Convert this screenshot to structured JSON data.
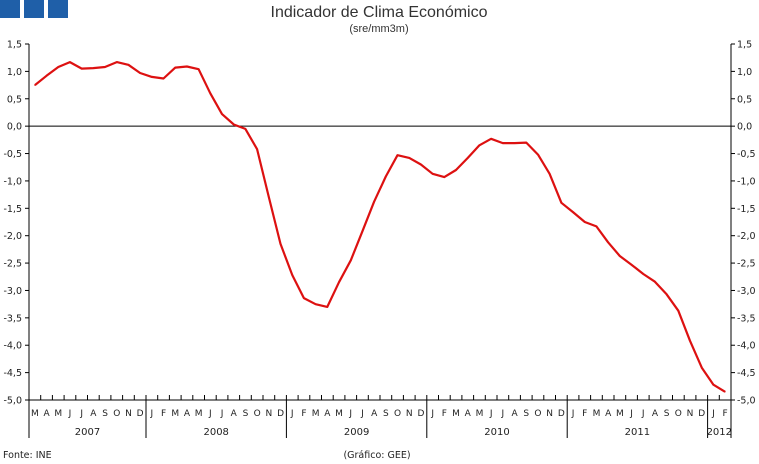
{
  "brand": {
    "square_color": "#1f5fa8",
    "square_count": 3
  },
  "footer": {
    "source": "Fonte: INE",
    "credit": "(Gráfico: GEE)"
  },
  "chart_data": {
    "type": "line",
    "title": "Indicador de Clima Económico",
    "subtitle": "(sre/mm3m)",
    "xlabel": "",
    "ylabel": "",
    "ylim": [
      -5.0,
      1.5
    ],
    "yticks": [
      1.5,
      1.0,
      0.5,
      0.0,
      -0.5,
      -1.0,
      -1.5,
      -2.0,
      -2.5,
      -3.0,
      -3.5,
      -4.0,
      -4.5,
      -5.0
    ],
    "ytick_labels": [
      "1,5",
      "1,0",
      "0,5",
      "0,0",
      "-0,5",
      "-1,0",
      "-1,5",
      "-2,0",
      "-2,5",
      "-3,0",
      "-3,5",
      "-4,0",
      "-4,5",
      "-5,0"
    ],
    "grid": false,
    "line_color": "#dd1111",
    "month_labels": [
      "M",
      "A",
      "M",
      "J",
      "J",
      "A",
      "S",
      "O",
      "N",
      "D",
      "J",
      "F",
      "M",
      "A",
      "M",
      "J",
      "J",
      "A",
      "S",
      "O",
      "N",
      "D",
      "J",
      "F",
      "M",
      "A",
      "M",
      "J",
      "J",
      "A",
      "S",
      "O",
      "N",
      "D",
      "J",
      "F",
      "M",
      "A",
      "M",
      "J",
      "J",
      "A",
      "S",
      "O",
      "N",
      "D",
      "J",
      "F",
      "M",
      "A",
      "M",
      "J",
      "J",
      "A",
      "S",
      "O",
      "N",
      "D",
      "J",
      "F"
    ],
    "years": [
      {
        "label": "2007",
        "months": 10
      },
      {
        "label": "2008",
        "months": 12
      },
      {
        "label": "2009",
        "months": 12
      },
      {
        "label": "2010",
        "months": 12
      },
      {
        "label": "2011",
        "months": 12
      },
      {
        "label": "2012",
        "months": 2
      }
    ],
    "series": [
      {
        "values": [
          0.75,
          0.92,
          1.08,
          1.17,
          1.05,
          1.06,
          1.08,
          1.17,
          1.12,
          0.97,
          0.9,
          0.87,
          1.07,
          1.09,
          1.04,
          0.6,
          0.22,
          0.03,
          -0.05,
          -0.42,
          -1.3,
          -2.15,
          -2.72,
          -3.14,
          -3.25,
          -3.3,
          -2.85,
          -2.45,
          -1.92,
          -1.38,
          -0.92,
          -0.53,
          -0.58,
          -0.7,
          -0.87,
          -0.93,
          -0.8,
          -0.58,
          -0.35,
          -0.23,
          -0.31,
          -0.31,
          -0.3,
          -0.52,
          -0.87,
          -1.4,
          -1.57,
          -1.75,
          -1.83,
          -2.12,
          -2.37,
          -2.53,
          -2.7,
          -2.84,
          -3.07,
          -3.37,
          -3.92,
          -4.41,
          -4.72,
          -4.85
        ]
      }
    ]
  }
}
